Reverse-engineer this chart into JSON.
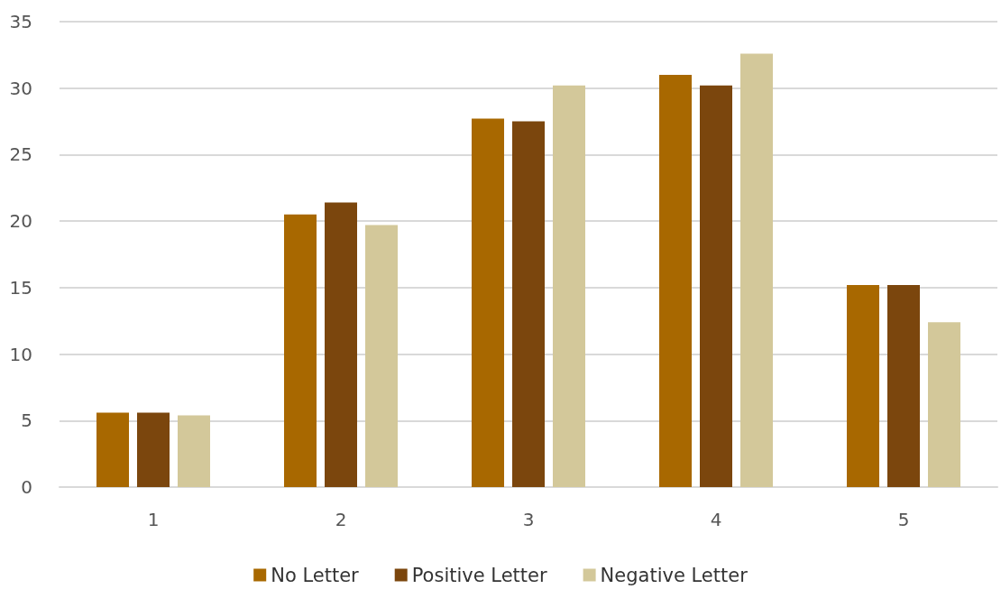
{
  "chart_data": {
    "type": "bar",
    "categories": [
      "1",
      "2",
      "3",
      "4",
      "5"
    ],
    "series": [
      {
        "name": "No Letter",
        "color": "#a86800",
        "values": [
          5.6,
          20.5,
          27.7,
          31.0,
          15.2
        ]
      },
      {
        "name": "Positive Letter",
        "color": "#7b460d",
        "values": [
          5.6,
          21.4,
          27.5,
          30.2,
          15.2
        ]
      },
      {
        "name": "Negative Letter",
        "color": "#d3c89a",
        "values": [
          5.4,
          19.7,
          30.2,
          32.6,
          12.4
        ]
      }
    ],
    "ylim": [
      0,
      35
    ],
    "yticks": [
      0,
      5,
      10,
      15,
      20,
      25,
      30,
      35
    ],
    "grid": "y",
    "legend": "bottom"
  }
}
